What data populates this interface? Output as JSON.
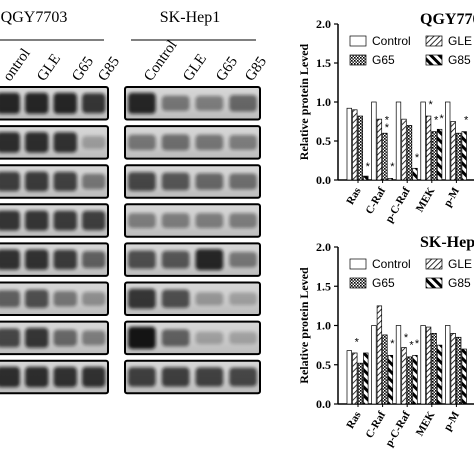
{
  "blots": {
    "panels": [
      {
        "title": "QGY7703",
        "lanes": [
          "ontrol",
          "GLE",
          "G65",
          "G85"
        ],
        "bands": [
          [
            0.85,
            0.85,
            0.85,
            0.75
          ],
          [
            0.8,
            0.8,
            0.78,
            0.12
          ],
          [
            0.7,
            0.72,
            0.68,
            0.35
          ],
          [
            0.75,
            0.75,
            0.72,
            0.7
          ],
          [
            0.78,
            0.78,
            0.72,
            0.5
          ],
          [
            0.5,
            0.6,
            0.35,
            0.2
          ],
          [
            0.65,
            0.75,
            0.45,
            0.3
          ],
          [
            0.8,
            0.8,
            0.78,
            0.78
          ]
        ]
      },
      {
        "title": "SK-Hep1",
        "lanes": [
          "Control",
          "GLE",
          "G65",
          "G85"
        ],
        "bands": [
          [
            0.85,
            0.35,
            0.3,
            0.45
          ],
          [
            0.35,
            0.4,
            0.35,
            0.3
          ],
          [
            0.65,
            0.55,
            0.45,
            0.4
          ],
          [
            0.3,
            0.3,
            0.3,
            0.3
          ],
          [
            0.6,
            0.55,
            0.85,
            0.35
          ],
          [
            0.75,
            0.6,
            0.15,
            0.1
          ],
          [
            0.95,
            0.5,
            0.1,
            0.08
          ],
          [
            0.7,
            0.7,
            0.68,
            0.65
          ]
        ]
      }
    ]
  },
  "chart_data": [
    {
      "type": "bar",
      "title": "QGY770",
      "ylabel": "Relative protein Leved",
      "ylim": [
        0,
        2.0
      ],
      "yticks": [
        "0.0",
        "0.5",
        "1.0",
        "1.5",
        "2.0"
      ],
      "categories": [
        "Ras",
        "C-Raf",
        "p-C-Raf",
        "MEK",
        "p-M"
      ],
      "legend": [
        "Control",
        "GLE",
        "G65",
        "G85"
      ],
      "legend_position": "top-right",
      "series": [
        {
          "name": "Control",
          "values": [
            0.92,
            1.0,
            1.0,
            1.0,
            1.0
          ]
        },
        {
          "name": "GLE",
          "values": [
            0.9,
            0.78,
            0.78,
            0.82,
            0.75
          ]
        },
        {
          "name": "G65",
          "values": [
            0.82,
            0.6,
            0.7,
            0.62,
            0.6
          ]
        },
        {
          "name": "G85",
          "values": [
            0.05,
            0.02,
            0.15,
            0.65,
            0.62
          ]
        }
      ],
      "annotations": [
        "*",
        "*",
        "*",
        "*",
        "*",
        "*",
        "*",
        "*",
        "*"
      ]
    },
    {
      "type": "bar",
      "title": "SK-Hep",
      "ylabel": "Relative protein Leved",
      "ylim": [
        0,
        2.0
      ],
      "yticks": [
        "0.0",
        "0.5",
        "1.0",
        "1.5",
        "2.0"
      ],
      "categories": [
        "Ras",
        "C-Raf",
        "p-C-Raf",
        "MEK",
        "p-M"
      ],
      "legend": [
        "Control",
        "GLE",
        "G65",
        "G85"
      ],
      "legend_position": "top-right",
      "series": [
        {
          "name": "Control",
          "values": [
            0.68,
            1.0,
            1.0,
            1.0,
            1.0
          ]
        },
        {
          "name": "GLE",
          "values": [
            0.65,
            1.25,
            0.72,
            0.98,
            0.9
          ]
        },
        {
          "name": "G65",
          "values": [
            0.52,
            0.88,
            0.6,
            0.9,
            0.85
          ]
        },
        {
          "name": "G85",
          "values": [
            0.65,
            0.62,
            0.62,
            0.75,
            0.7
          ]
        }
      ],
      "annotations": [
        "*",
        "*",
        "*",
        "*",
        "*"
      ]
    }
  ],
  "colors": {
    "blot_bg": "#c9c9c9",
    "band": "#111111",
    "frame": "#000000"
  }
}
